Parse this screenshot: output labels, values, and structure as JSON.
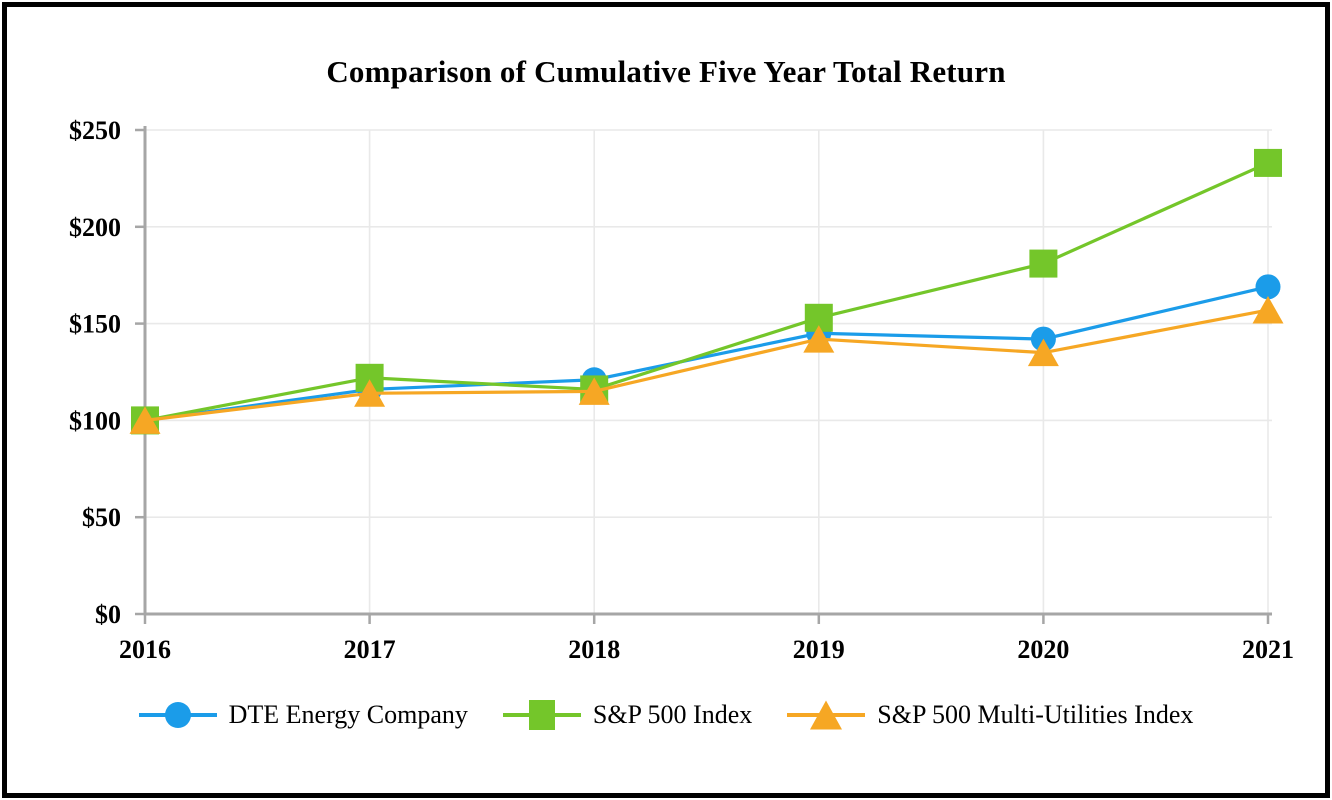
{
  "title": "Comparison of Cumulative Five Year Total Return",
  "chart_data": {
    "type": "line",
    "x": [
      "2016",
      "2017",
      "2018",
      "2019",
      "2020",
      "2021"
    ],
    "ylim": [
      0,
      250
    ],
    "y_ticks": [
      {
        "label": "$0",
        "value": 0
      },
      {
        "label": "$50",
        "value": 50
      },
      {
        "label": "$100",
        "value": 100
      },
      {
        "label": "$150",
        "value": 150
      },
      {
        "label": "$200",
        "value": 200
      },
      {
        "label": "$250",
        "value": 250
      }
    ],
    "grid": true,
    "legend_position": "bottom",
    "series": [
      {
        "name": "DTE Energy Company",
        "marker": "circle",
        "color": "#1B9CE9",
        "values": [
          100,
          116,
          121,
          145,
          142,
          169
        ]
      },
      {
        "name": "S&P 500 Index",
        "marker": "square",
        "color": "#74C62A",
        "values": [
          100,
          122,
          116,
          153,
          181,
          233
        ]
      },
      {
        "name": "S&P 500 Multi-Utilities Index",
        "marker": "triangle",
        "color": "#F6A724",
        "values": [
          100,
          114,
          115,
          142,
          135,
          157
        ]
      }
    ]
  },
  "colors": {
    "grid": "#E9E9E9",
    "axis": "#A6A6A6",
    "border": "#000000",
    "text": "#000000"
  }
}
